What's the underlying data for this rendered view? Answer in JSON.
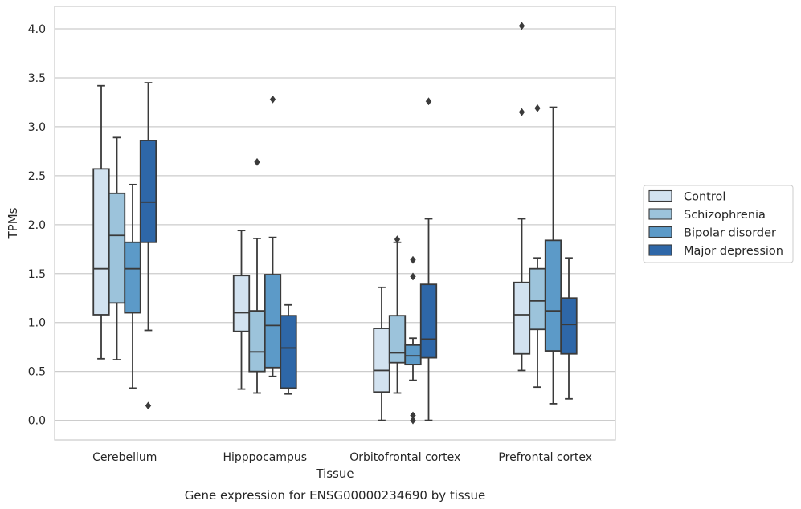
{
  "chart_data": {
    "type": "box",
    "xlabel": "Tissue",
    "ylabel": "TPMs",
    "caption": "Gene expression for ENSG00000234690 by tissue",
    "categories": [
      "Cerebellum",
      "Hipppocampus",
      "Orbitofrontal cortex",
      "Prefrontal cortex"
    ],
    "ylim": [
      -0.2,
      4.23
    ],
    "yticks": [
      "0.0",
      "0.5",
      "1.0",
      "1.5",
      "2.0",
      "2.5",
      "3.0",
      "3.5",
      "4.0"
    ],
    "grid": true,
    "legend_position": "right",
    "series": [
      {
        "name": "Control",
        "color": "#d2e2f0",
        "boxes": [
          {
            "whislo": 0.63,
            "q1": 1.08,
            "med": 1.55,
            "q3": 2.57,
            "whishi": 3.42,
            "fliers": []
          },
          {
            "whislo": 0.32,
            "q1": 0.91,
            "med": 1.1,
            "q3": 1.48,
            "whishi": 1.94,
            "fliers": []
          },
          {
            "whislo": 0.0,
            "q1": 0.29,
            "med": 0.51,
            "q3": 0.94,
            "whishi": 1.36,
            "fliers": []
          },
          {
            "whislo": 0.51,
            "q1": 0.68,
            "med": 1.08,
            "q3": 1.41,
            "whishi": 2.06,
            "fliers": [
              3.15,
              4.03
            ]
          }
        ]
      },
      {
        "name": "Schizophrenia",
        "color": "#9cc3db",
        "boxes": [
          {
            "whislo": 0.62,
            "q1": 1.2,
            "med": 1.89,
            "q3": 2.32,
            "whishi": 2.89,
            "fliers": []
          },
          {
            "whislo": 0.28,
            "q1": 0.5,
            "med": 0.7,
            "q3": 1.12,
            "whishi": 1.86,
            "fliers": [
              2.64
            ]
          },
          {
            "whislo": 0.28,
            "q1": 0.59,
            "med": 0.69,
            "q3": 1.07,
            "whishi": 1.82,
            "fliers": [
              1.85
            ]
          },
          {
            "whislo": 0.34,
            "q1": 0.93,
            "med": 1.22,
            "q3": 1.55,
            "whishi": 1.66,
            "fliers": [
              3.19
            ]
          }
        ]
      },
      {
        "name": "Bipolar disorder",
        "color": "#5c9ac8",
        "boxes": [
          {
            "whislo": 0.33,
            "q1": 1.1,
            "med": 1.55,
            "q3": 1.82,
            "whishi": 2.41,
            "fliers": []
          },
          {
            "whislo": 0.45,
            "q1": 0.54,
            "med": 0.97,
            "q3": 1.49,
            "whishi": 1.87,
            "fliers": [
              3.28
            ]
          },
          {
            "whislo": 0.41,
            "q1": 0.57,
            "med": 0.66,
            "q3": 0.77,
            "whishi": 0.84,
            "fliers": [
              1.64,
              1.47,
              0.05,
              0.0
            ]
          },
          {
            "whislo": 0.17,
            "q1": 0.71,
            "med": 1.12,
            "q3": 1.84,
            "whishi": 3.2,
            "fliers": []
          }
        ]
      },
      {
        "name": "Major depression",
        "color": "#2e67a8",
        "boxes": [
          {
            "whislo": 0.92,
            "q1": 1.82,
            "med": 2.23,
            "q3": 2.86,
            "whishi": 3.45,
            "fliers": [
              0.15
            ]
          },
          {
            "whislo": 0.27,
            "q1": 0.33,
            "med": 0.74,
            "q3": 1.07,
            "whishi": 1.18,
            "fliers": []
          },
          {
            "whislo": 0.0,
            "q1": 0.64,
            "med": 0.83,
            "q3": 1.39,
            "whishi": 2.06,
            "fliers": [
              3.26
            ]
          },
          {
            "whislo": 0.22,
            "q1": 0.68,
            "med": 0.98,
            "q3": 1.25,
            "whishi": 1.66,
            "fliers": []
          }
        ]
      }
    ]
  }
}
